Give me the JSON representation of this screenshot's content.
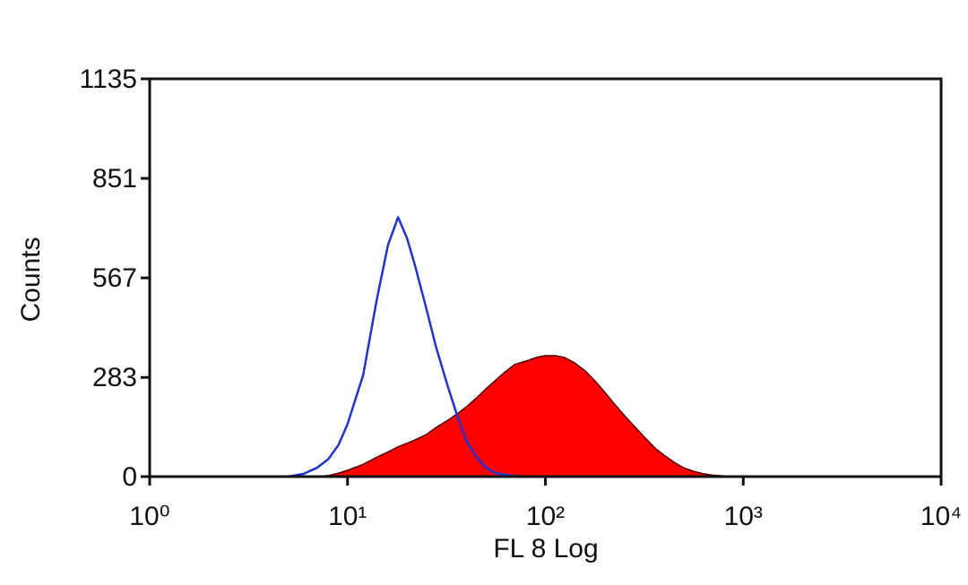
{
  "chart_data": {
    "type": "histogram-overlay",
    "xlabel": "FL 8 Log",
    "ylabel": "Counts",
    "xscale": "log",
    "xlim": [
      1,
      10000
    ],
    "xticks": [
      {
        "value": 1,
        "label": "10⁰"
      },
      {
        "value": 10,
        "label": "10¹"
      },
      {
        "value": 100,
        "label": "10²"
      },
      {
        "value": 1000,
        "label": "10³"
      },
      {
        "value": 10000,
        "label": "10⁴"
      }
    ],
    "ylim": [
      0,
      1135
    ],
    "yticks": [
      0,
      283,
      567,
      851,
      1135
    ],
    "grid": false,
    "x": [
      4,
      5,
      6,
      7,
      8,
      9,
      10,
      12,
      14,
      16,
      18,
      20,
      22,
      25,
      28,
      32,
      36,
      40,
      45,
      50,
      56,
      63,
      70,
      80,
      90,
      100,
      112,
      125,
      140,
      160,
      180,
      200,
      225,
      250,
      280,
      320,
      360,
      400,
      450,
      500,
      560,
      630,
      700,
      800,
      900,
      1000
    ],
    "series": [
      {
        "color": "#ff0000",
        "edgecolor": "#4a0000",
        "fill": true,
        "values": [
          0,
          0,
          0,
          0,
          3,
          10,
          18,
          35,
          55,
          70,
          85,
          95,
          105,
          120,
          140,
          160,
          180,
          200,
          225,
          250,
          275,
          300,
          320,
          330,
          340,
          345,
          345,
          340,
          325,
          300,
          270,
          240,
          205,
          175,
          145,
          110,
          80,
          60,
          40,
          25,
          15,
          8,
          4,
          2,
          1,
          0
        ]
      },
      {
        "color": "#2233cc",
        "fill": false,
        "values": [
          0,
          0,
          8,
          25,
          50,
          90,
          150,
          290,
          500,
          660,
          740,
          680,
          600,
          480,
          370,
          260,
          170,
          100,
          55,
          25,
          10,
          5,
          2,
          0,
          0,
          0,
          0,
          0,
          0,
          0,
          0,
          0,
          0,
          0,
          0,
          0,
          0,
          0,
          0,
          0,
          0,
          0,
          0,
          0,
          0,
          0
        ]
      }
    ]
  }
}
